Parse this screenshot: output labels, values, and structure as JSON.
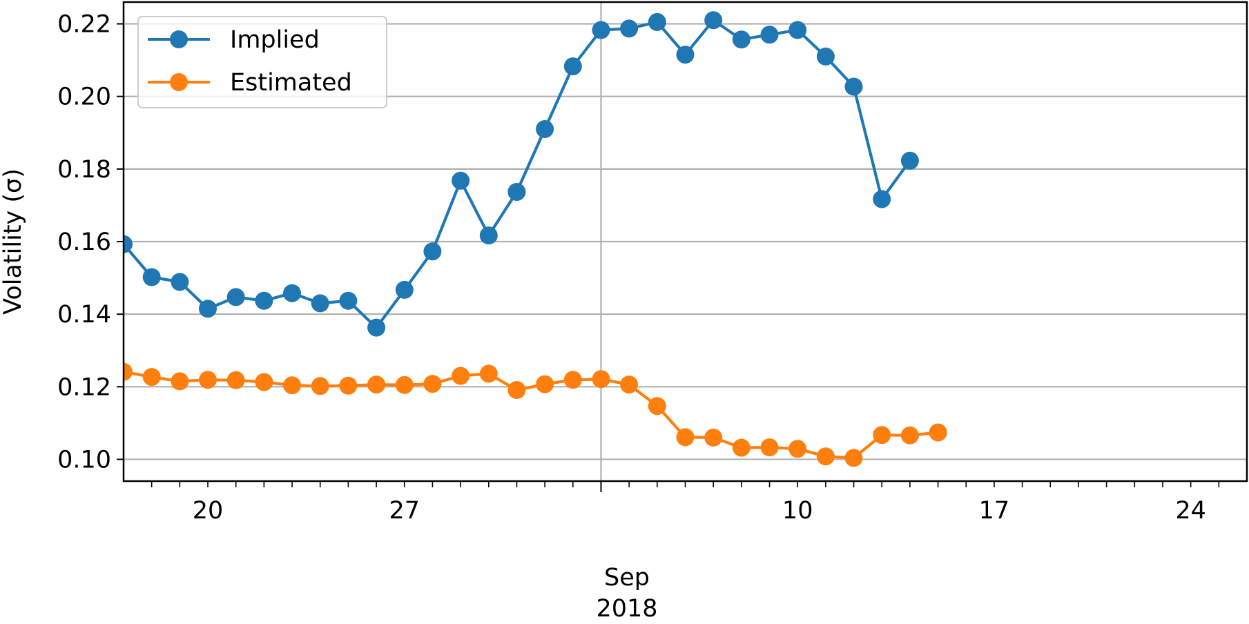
{
  "chart_data": {
    "type": "line",
    "ylabel": "Volatility (σ)",
    "ylim": [
      0.094,
      0.226
    ],
    "xlim": [
      "2018-08-17",
      "2018-09-26"
    ],
    "yticks": [
      0.1,
      0.12,
      0.14,
      0.16,
      0.18,
      0.2,
      0.22
    ],
    "ytick_labels": [
      "0.10",
      "0.12",
      "0.14",
      "0.16",
      "0.18",
      "0.20",
      "0.22"
    ],
    "xticks_major": [
      {
        "date": "2018-08-20",
        "label": "20"
      },
      {
        "date": "2018-08-27",
        "label": "27"
      },
      {
        "date": "2018-09-10",
        "label": "10"
      },
      {
        "date": "2018-09-17",
        "label": "17"
      },
      {
        "date": "2018-09-24",
        "label": "24"
      }
    ],
    "month_label": "Sep",
    "year_label": "2018",
    "month_boundary": "2018-09-03",
    "grid": true,
    "legend_position": "top-left",
    "series": [
      {
        "name": "Implied",
        "color": "#1f77b4",
        "x": [
          "2018-08-16",
          "2018-08-17",
          "2018-08-18",
          "2018-08-19",
          "2018-08-20",
          "2018-08-21",
          "2018-08-22",
          "2018-08-23",
          "2018-08-24",
          "2018-08-25",
          "2018-08-26",
          "2018-08-27",
          "2018-08-28",
          "2018-08-29",
          "2018-08-30",
          "2018-08-31",
          "2018-09-01",
          "2018-09-02",
          "2018-09-03",
          "2018-09-04",
          "2018-09-05",
          "2018-09-06",
          "2018-09-07",
          "2018-09-08",
          "2018-09-09",
          "2018-09-10",
          "2018-09-11",
          "2018-09-12",
          "2018-09-13",
          "2018-09-14",
          "2018-09-15",
          "2018-09-16",
          "2018-09-17",
          "2018-09-18",
          "2018-09-19",
          "2018-09-20",
          "2018-09-21",
          "2018-09-22",
          "2018-09-23",
          "2018-09-24"
        ],
        "values": [
          null,
          0.1593,
          0.1502,
          0.1489,
          0.1415,
          0.1447,
          0.1437,
          0.1458,
          0.143,
          0.1437,
          0.1363,
          0.1467,
          0.1573,
          0.1768,
          0.1617,
          0.1737,
          0.191,
          0.2083,
          0.2183,
          0.2187,
          0.2205,
          0.2115,
          0.221,
          0.2157,
          0.217,
          0.2183,
          0.211,
          0.2027,
          0.1717,
          0.1823,
          null,
          null,
          null,
          null,
          null,
          null,
          null,
          null,
          null,
          null
        ]
      },
      {
        "name": "Estimated",
        "color": "#ff7f0e",
        "x": [
          "2018-08-16",
          "2018-08-17",
          "2018-08-18",
          "2018-08-19",
          "2018-08-20",
          "2018-08-21",
          "2018-08-22",
          "2018-08-23",
          "2018-08-24",
          "2018-08-25",
          "2018-08-26",
          "2018-08-27",
          "2018-08-28",
          "2018-08-29",
          "2018-08-30",
          "2018-08-31",
          "2018-09-01",
          "2018-09-02",
          "2018-09-03",
          "2018-09-04",
          "2018-09-05",
          "2018-09-06",
          "2018-09-07",
          "2018-09-08",
          "2018-09-09",
          "2018-09-10",
          "2018-09-11",
          "2018-09-12",
          "2018-09-13",
          "2018-09-14",
          "2018-09-15",
          "2018-09-16",
          "2018-09-17",
          "2018-09-18",
          "2018-09-19",
          "2018-09-20",
          "2018-09-21",
          "2018-09-22",
          "2018-09-23",
          "2018-09-24"
        ],
        "values": [
          null,
          0.1241,
          0.1227,
          0.1215,
          0.1219,
          0.1218,
          0.1213,
          0.1204,
          0.1202,
          0.1203,
          0.1206,
          0.1205,
          0.1208,
          0.123,
          0.1236,
          0.1191,
          0.1207,
          0.1219,
          0.1221,
          0.1206,
          0.1147,
          0.1061,
          0.106,
          0.1032,
          0.1033,
          0.1029,
          0.1008,
          0.1004,
          0.1067,
          0.1066,
          0.1074,
          null,
          null,
          null,
          null,
          null,
          null,
          null,
          null,
          null
        ]
      }
    ]
  }
}
